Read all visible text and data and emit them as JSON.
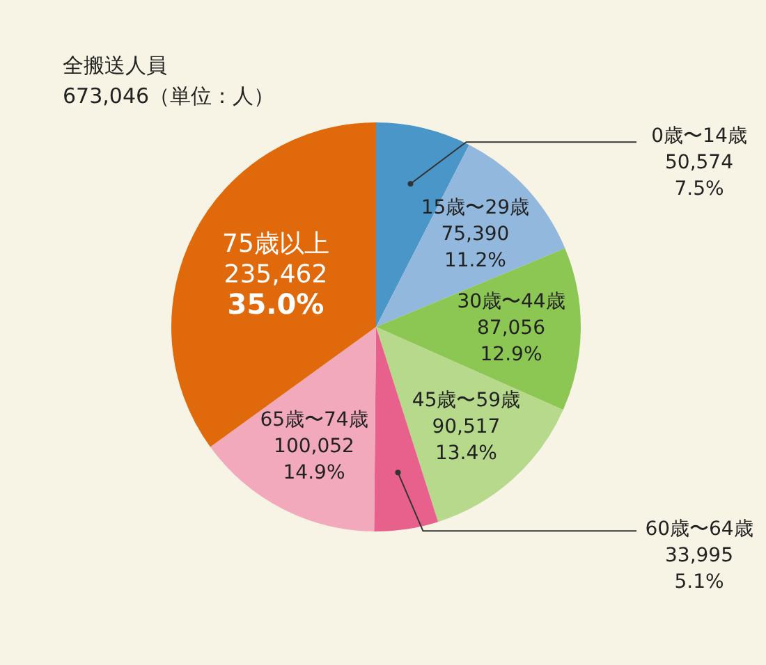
{
  "chart_data": {
    "type": "pie",
    "title": "全搬送人員",
    "subtitle": "673,046（単位：人）",
    "categories": [
      "0歳〜14歳",
      "15歳〜29歳",
      "30歳〜44歳",
      "45歳〜59歳",
      "60歳〜64歳",
      "65歳〜74歳",
      "75歳以上"
    ],
    "values": [
      50574,
      75390,
      87056,
      90517,
      33995,
      100052,
      235462
    ],
    "value_labels": [
      "50,574\n7.5%",
      "75,390\n11.2%",
      "87,056\n12.9%",
      "90,517\n13.4%",
      "33,995\n5.1%",
      "100,052\n14.9%",
      "235,462\n35.0%"
    ],
    "colors": [
      "#4a96c8",
      "#93b8de",
      "#8cc653",
      "#b6d98c",
      "#e8618c",
      "#f3a9bc",
      "#e0690c"
    ],
    "legend": false
  }
}
